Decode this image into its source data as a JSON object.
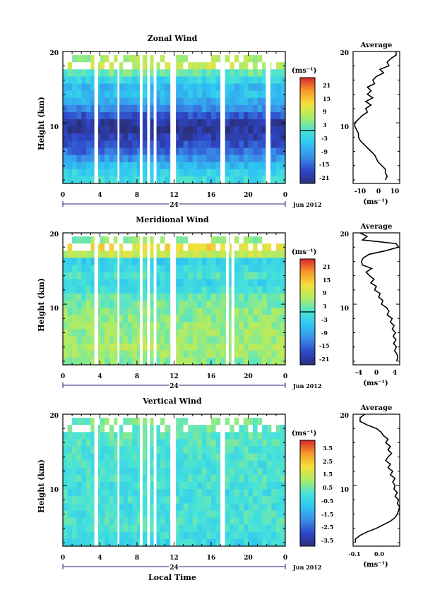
{
  "panels": [
    {
      "id": "zonal",
      "title": "Zonal Wind",
      "ylabel": "Height (km)",
      "yticks": [
        "20",
        "10"
      ],
      "xticks": [
        "0",
        "4",
        "8",
        "12",
        "16",
        "20",
        "0"
      ],
      "day_label": "24",
      "month_label": "Jun 2012",
      "cbar_unit": "(ms⁻¹)",
      "cbar_ticks": [
        "21",
        "15",
        "9",
        "3",
        "-3",
        "-9",
        "-15",
        "-21"
      ],
      "avg_title": "Average",
      "avg_yticks": [
        "20",
        "10"
      ],
      "avg_xticks": [
        "-10",
        "0",
        "10"
      ],
      "avg_xlabel": "(ms⁻¹)"
    },
    {
      "id": "meridional",
      "title": "Meridional Wind",
      "ylabel": "Height (km)",
      "yticks": [
        "20",
        "10"
      ],
      "xticks": [
        "0",
        "4",
        "8",
        "12",
        "16",
        "20",
        "0"
      ],
      "day_label": "24",
      "month_label": "Jun 2012",
      "cbar_unit": "(ms⁻¹)",
      "cbar_ticks": [
        "21",
        "15",
        "9",
        "3",
        "-3",
        "-9",
        "-15",
        "-21"
      ],
      "avg_title": "Average",
      "avg_yticks": [
        "20",
        "10"
      ],
      "avg_xticks": [
        "-4",
        "0",
        "4"
      ],
      "avg_xlabel": "(ms⁻¹)"
    },
    {
      "id": "vertical",
      "title": "Vertical Wind",
      "ylabel": "Height (km)",
      "yticks": [
        "20",
        "10"
      ],
      "xticks": [
        "0",
        "4",
        "8",
        "12",
        "16",
        "20",
        "0"
      ],
      "day_label": "24",
      "month_label": "Jun 2012",
      "cbar_unit": "(ms⁻¹)",
      "cbar_ticks": [
        "3.5",
        "2.5",
        "1.5",
        "0.5",
        "-0.5",
        "-1.5",
        "-2.5",
        "-3.5"
      ],
      "avg_title": "Average",
      "avg_yticks": [
        "20",
        "10"
      ],
      "avg_xticks": [
        "-0.1",
        "0.0"
      ],
      "avg_xlabel": "(ms⁻¹)"
    }
  ],
  "xlabel_bottom": "Local Time",
  "chart_data": [
    {
      "type": "heatmap",
      "title": "Zonal Wind",
      "ylabel": "Height (km)",
      "xlabel": "Local Time",
      "x_range_hours": [
        0,
        24
      ],
      "y_range_km": [
        1.5,
        20
      ],
      "colorbar_range": [
        -24,
        24
      ],
      "colorbar_unit": "ms^-1",
      "data_gaps_hours": [
        [
          3.4,
          3.8
        ],
        [
          5.9,
          6.1
        ],
        [
          8.3,
          8.6
        ],
        [
          9.1,
          9.4
        ],
        [
          9.8,
          10.1
        ],
        [
          11.6,
          12.2
        ],
        [
          17.0,
          17.5
        ],
        [
          21.9,
          22.4
        ]
      ],
      "profile_rows": [
        {
          "height_km": 19.0,
          "value": 6
        },
        {
          "height_km": 18.0,
          "value": 8
        },
        {
          "height_km": 17.0,
          "value": 2
        },
        {
          "height_km": 16.0,
          "value": -3
        },
        {
          "height_km": 15.0,
          "value": -7
        },
        {
          "height_km": 14.0,
          "value": -6
        },
        {
          "height_km": 13.0,
          "value": -9
        },
        {
          "height_km": 12.0,
          "value": -12
        },
        {
          "height_km": 11.0,
          "value": -17
        },
        {
          "height_km": 10.0,
          "value": -21
        },
        {
          "height_km": 9.0,
          "value": -22
        },
        {
          "height_km": 8.0,
          "value": -20
        },
        {
          "height_km": 7.0,
          "value": -18
        },
        {
          "height_km": 6.0,
          "value": -15
        },
        {
          "height_km": 5.0,
          "value": -11
        },
        {
          "height_km": 4.0,
          "value": -7
        },
        {
          "height_km": 3.0,
          "value": -4
        },
        {
          "height_km": 2.0,
          "value": -2
        }
      ],
      "average_profile": {
        "xlim": [
          -14,
          12
        ],
        "ylim": [
          1.5,
          20
        ],
        "height_km": [
          20.0,
          19.5,
          19.0,
          18.5,
          18.0,
          17.5,
          17.0,
          16.5,
          16.0,
          15.5,
          15.0,
          14.5,
          14.0,
          13.5,
          13.0,
          12.5,
          12.0,
          11.5,
          11.0,
          10.5,
          10.0,
          9.5,
          9.0,
          8.5,
          8.0,
          7.5,
          7.0,
          6.5,
          6.0,
          5.5,
          5.0,
          4.5,
          4.0,
          3.5,
          3.0,
          2.5,
          2.0
        ],
        "wind": [
          10,
          10,
          7,
          5,
          6,
          1,
          3,
          -1,
          -3,
          -2,
          -6,
          -4,
          -6,
          -3,
          -7,
          -4,
          -7,
          -6,
          -9,
          -11,
          -13,
          -13,
          -12,
          -11,
          -11,
          -10,
          -8,
          -6,
          -4,
          -2,
          -1,
          0,
          2,
          4,
          4,
          5,
          4
        ]
      }
    },
    {
      "type": "heatmap",
      "title": "Meridional Wind",
      "ylabel": "Height (km)",
      "xlabel": "Local Time",
      "x_range_hours": [
        0,
        24
      ],
      "y_range_km": [
        1.5,
        20
      ],
      "colorbar_range": [
        -24,
        24
      ],
      "colorbar_unit": "ms^-1",
      "data_gaps_hours": [
        [
          3.4,
          3.8
        ],
        [
          5.9,
          6.1
        ],
        [
          8.3,
          8.6
        ],
        [
          9.1,
          9.4
        ],
        [
          9.8,
          10.1
        ],
        [
          11.6,
          12.2
        ],
        [
          17.6,
          17.9
        ],
        [
          18.2,
          18.5
        ]
      ],
      "profile_rows": [
        {
          "height_km": 19.0,
          "value": 4
        },
        {
          "height_km": 18.0,
          "value": 12
        },
        {
          "height_km": 17.0,
          "value": 8
        },
        {
          "height_km": 16.0,
          "value": -4
        },
        {
          "height_km": 15.0,
          "value": -2
        },
        {
          "height_km": 14.0,
          "value": 0
        },
        {
          "height_km": 13.0,
          "value": -3
        },
        {
          "height_km": 12.0,
          "value": -1
        },
        {
          "height_km": 11.0,
          "value": 2
        },
        {
          "height_km": 10.0,
          "value": 3
        },
        {
          "height_km": 9.0,
          "value": 4
        },
        {
          "height_km": 8.0,
          "value": 4
        },
        {
          "height_km": 7.0,
          "value": 5
        },
        {
          "height_km": 6.0,
          "value": 5
        },
        {
          "height_km": 5.0,
          "value": 5
        },
        {
          "height_km": 4.0,
          "value": 6
        },
        {
          "height_km": 3.0,
          "value": 5
        },
        {
          "height_km": 2.0,
          "value": 4
        }
      ],
      "average_profile": {
        "xlim": [
          -5,
          5
        ],
        "ylim": [
          1.5,
          20
        ],
        "height_km": [
          20.0,
          19.5,
          19.0,
          18.5,
          18.0,
          17.5,
          17.0,
          16.5,
          16.0,
          15.5,
          15.0,
          14.5,
          14.0,
          13.5,
          13.0,
          12.5,
          12.0,
          11.5,
          11.0,
          10.5,
          10.0,
          9.5,
          9.0,
          8.5,
          8.0,
          7.5,
          7.0,
          6.5,
          6.0,
          5.5,
          5.0,
          4.5,
          4.0,
          3.5,
          3.0,
          2.5,
          2.0
        ],
        "wind": [
          -3.5,
          -2,
          -3,
          4.2,
          4.8,
          2,
          -1.5,
          -2.8,
          -3.2,
          -3,
          -1,
          -2.2,
          -1.5,
          -0.5,
          -1.2,
          0,
          -0.4,
          0.8,
          0.5,
          1.4,
          1.1,
          2.2,
          2.7,
          2.3,
          3.4,
          3,
          3.8,
          3.4,
          4.1,
          3.6,
          4.2,
          3.7,
          4.3,
          3.9,
          4.4,
          4.6,
          4.3
        ]
      }
    },
    {
      "type": "heatmap",
      "title": "Vertical Wind",
      "ylabel": "Height (km)",
      "xlabel": "Local Time",
      "x_range_hours": [
        0,
        24
      ],
      "y_range_km": [
        1.5,
        20
      ],
      "colorbar_range": [
        -4,
        4
      ],
      "colorbar_unit": "ms^-1",
      "data_gaps_hours": [
        [
          3.4,
          3.8
        ],
        [
          5.9,
          6.1
        ],
        [
          8.3,
          8.6
        ],
        [
          9.1,
          9.4
        ],
        [
          9.8,
          10.1
        ],
        [
          11.6,
          12.2
        ],
        [
          17.0,
          17.5
        ]
      ],
      "profile_rows": [
        {
          "height_km": 19.0,
          "value": 0.5
        },
        {
          "height_km": 18.0,
          "value": 0.3
        },
        {
          "height_km": 17.0,
          "value": 0.2
        },
        {
          "height_km": 16.0,
          "value": 0.1
        },
        {
          "height_km": 15.0,
          "value": 0.0
        },
        {
          "height_km": 14.0,
          "value": 0.0
        },
        {
          "height_km": 13.0,
          "value": -0.1
        },
        {
          "height_km": 12.0,
          "value": -0.1
        },
        {
          "height_km": 11.0,
          "value": 0.0
        },
        {
          "height_km": 10.0,
          "value": -0.1
        },
        {
          "height_km": 9.0,
          "value": -0.2
        },
        {
          "height_km": 8.0,
          "value": -0.1
        },
        {
          "height_km": 7.0,
          "value": -0.2
        },
        {
          "height_km": 6.0,
          "value": -0.1
        },
        {
          "height_km": 5.0,
          "value": 0.0
        },
        {
          "height_km": 4.0,
          "value": -0.1
        },
        {
          "height_km": 3.0,
          "value": -0.3
        },
        {
          "height_km": 2.0,
          "value": -0.4
        }
      ],
      "average_profile": {
        "xlim": [
          -0.13,
          0.07
        ],
        "ylim": [
          1.5,
          20
        ],
        "height_km": [
          20.0,
          19.5,
          19.0,
          18.5,
          18.0,
          17.5,
          17.0,
          16.5,
          16.0,
          15.5,
          15.0,
          14.5,
          14.0,
          13.5,
          13.0,
          12.5,
          12.0,
          11.5,
          11.0,
          10.5,
          10.0,
          9.5,
          9.0,
          8.5,
          8.0,
          7.5,
          7.0,
          6.5,
          6.0,
          5.5,
          5.0,
          4.5,
          4.0,
          3.5,
          3.0,
          2.5,
          2.0
        ],
        "wind": [
          -0.08,
          -0.1,
          -0.1,
          -0.07,
          -0.03,
          -0.01,
          0.0,
          0.02,
          0.01,
          0.03,
          0.02,
          0.035,
          0.02,
          0.01,
          0.03,
          0.02,
          0.04,
          0.03,
          0.05,
          0.04,
          0.05,
          0.045,
          0.06,
          0.05,
          0.065,
          0.06,
          0.07,
          0.065,
          0.06,
          0.05,
          0.03,
          0.0,
          -0.03,
          -0.07,
          -0.1,
          -0.12,
          -0.12
        ]
      }
    }
  ]
}
